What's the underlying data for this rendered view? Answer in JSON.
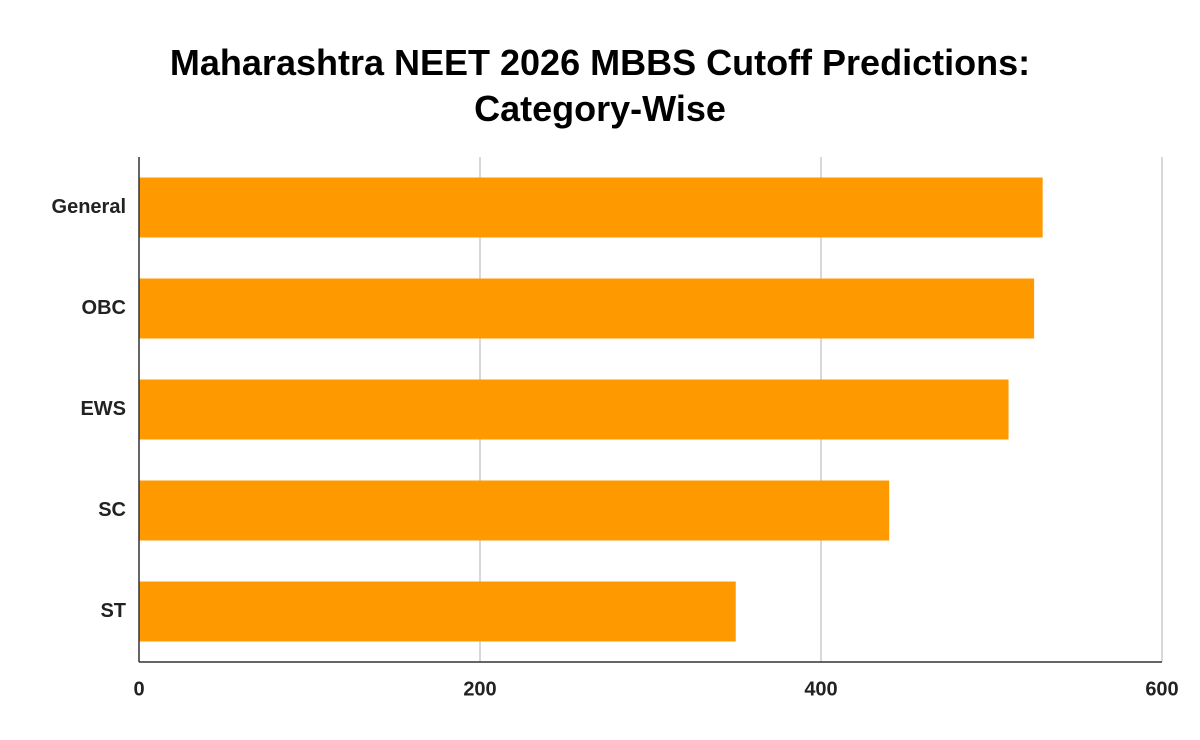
{
  "chart_data": {
    "type": "bar",
    "orientation": "horizontal",
    "title": "Maharashtra NEET 2026 MBBS Cutoff Predictions: Category-Wise",
    "categories": [
      "General",
      "OBC",
      "EWS",
      "SC",
      "ST"
    ],
    "values": [
      530,
      525,
      510,
      440,
      350
    ],
    "color": "#ff9900",
    "xlim": [
      0,
      600
    ],
    "xticks": [
      0,
      200,
      400,
      600
    ],
    "grid": true
  }
}
